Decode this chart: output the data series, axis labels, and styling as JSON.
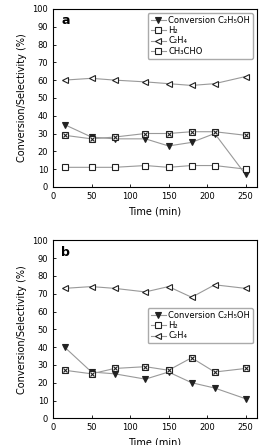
{
  "panel_a": {
    "label": "a",
    "time": [
      15,
      50,
      80,
      120,
      150,
      180,
      210,
      250
    ],
    "conversion": [
      35,
      28,
      27,
      27,
      23,
      25,
      30,
      7
    ],
    "H2": [
      29,
      27,
      28,
      30,
      30,
      31,
      31,
      29
    ],
    "C2H4": [
      60,
      61,
      60,
      59,
      58,
      57,
      58,
      62
    ],
    "CH3CHO": [
      11,
      11,
      11,
      12,
      11,
      12,
      12,
      10
    ],
    "legend_labels": [
      "Conversion C₂H₅OH",
      "H₂",
      "C₂H₄",
      "CH₃CHO"
    ],
    "xlabel": "Time (min)",
    "ylabel": "Conversion/Selectivity (%)",
    "xlim": [
      0,
      265
    ],
    "ylim": [
      0,
      100
    ],
    "xticks": [
      0,
      50,
      100,
      150,
      200,
      250
    ],
    "yticks": [
      0,
      10,
      20,
      30,
      40,
      50,
      60,
      70,
      80,
      90,
      100
    ]
  },
  "panel_b": {
    "label": "b",
    "time": [
      15,
      50,
      80,
      120,
      150,
      180,
      210,
      250
    ],
    "conversion": [
      40,
      26,
      25,
      22,
      26,
      20,
      17,
      11
    ],
    "H2": [
      27,
      25,
      28,
      29,
      27,
      34,
      26,
      28
    ],
    "C2H4": [
      73,
      74,
      73,
      71,
      74,
      68,
      75,
      73
    ],
    "legend_labels": [
      "Conversion C₂H₅OH",
      "H₂",
      "C₂H₄"
    ],
    "xlabel": "Time (min)",
    "ylabel": "Conversion/Selectivity (%)",
    "xlim": [
      0,
      265
    ],
    "ylim": [
      0,
      100
    ],
    "xticks": [
      0,
      50,
      100,
      150,
      200,
      250
    ],
    "yticks": [
      0,
      10,
      20,
      30,
      40,
      50,
      60,
      70,
      80,
      90,
      100
    ]
  },
  "line_color": "#999999",
  "marker_dark": "#222222",
  "fontsize_label": 7,
  "fontsize_tick": 6,
  "fontsize_legend": 6,
  "fontsize_panel": 9
}
